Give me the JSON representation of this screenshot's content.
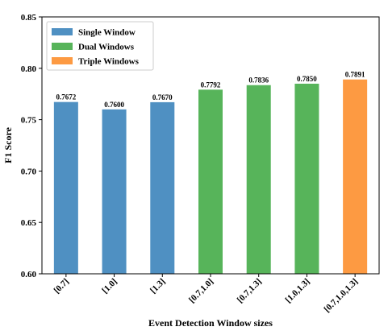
{
  "chart_data": {
    "type": "bar",
    "categories": [
      "[0.7]",
      "[1.0]",
      "[1.3]",
      "[0.7,1.0]",
      "[0.7,1.3]",
      "[1.0,1.3]",
      "[0.7,1.0,1.3]"
    ],
    "values": [
      0.7672,
      0.76,
      0.767,
      0.7792,
      0.7836,
      0.785,
      0.7891
    ],
    "value_labels": [
      "0.7672",
      "0.7600",
      "0.7670",
      "0.7792",
      "0.7836",
      "0.7850",
      "0.7891"
    ],
    "groups": [
      "Single Window",
      "Single Window",
      "Single Window",
      "Dual Windows",
      "Dual Windows",
      "Dual Windows",
      "Triple Windows"
    ],
    "legend": [
      {
        "name": "Single Window",
        "color": "#4f90c2"
      },
      {
        "name": "Dual Windows",
        "color": "#57b45a"
      },
      {
        "name": "Triple Windows",
        "color": "#fd9a42"
      }
    ],
    "xlabel": "Event Detection Window sizes",
    "ylabel": "F1 Score",
    "ylim": [
      0.6,
      0.85
    ],
    "yticks": [
      "0.60",
      "0.65",
      "0.70",
      "0.75",
      "0.80",
      "0.85"
    ],
    "legend_position": "top-left",
    "grid": false
  }
}
